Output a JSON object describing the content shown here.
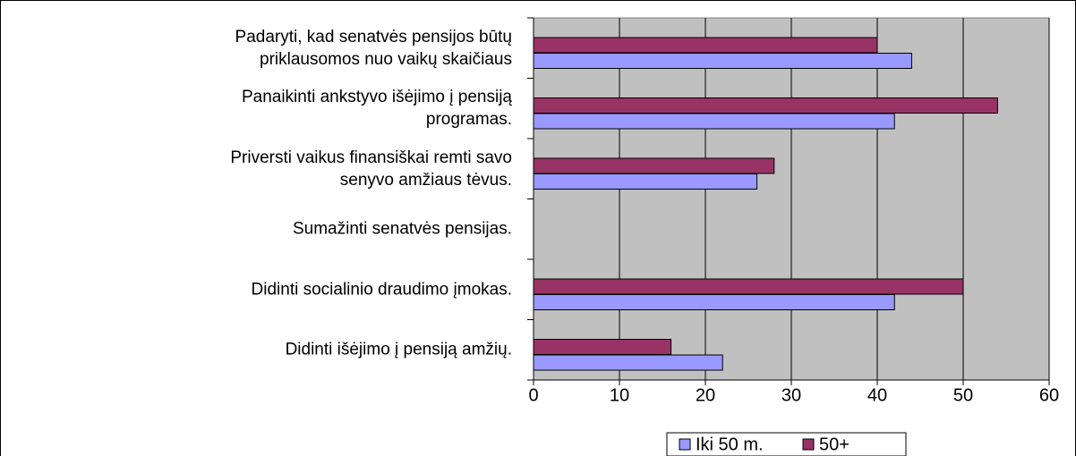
{
  "chart_data": {
    "type": "barh",
    "categories": [
      "Padaryti, kad senatvės pensijos būtų\npriklausomos nuo vaikų skaičiaus",
      "Panaikinti ankstyvo išėjimo į pensiją\nprogramas.",
      "Priversti vaikus finansiškai remti savo\nsenyvo amžiaus tėvus.",
      "Sumažinti senatvės pensijas.",
      "Didinti socialinio draudimo įmokas.",
      "Didinti išėjimo į pensiją amžių."
    ],
    "series": [
      {
        "name": "Iki 50 m.",
        "color": "#9999ff",
        "values": [
          44,
          42,
          26,
          0,
          42,
          22
        ]
      },
      {
        "name": "50+",
        "color": "#993366",
        "values": [
          40,
          54,
          28,
          0,
          50,
          16
        ]
      }
    ],
    "xlim": [
      0,
      60
    ],
    "xticks": [
      0,
      10,
      20,
      30,
      40,
      50,
      60
    ],
    "grid": true,
    "legend": "bottom"
  }
}
